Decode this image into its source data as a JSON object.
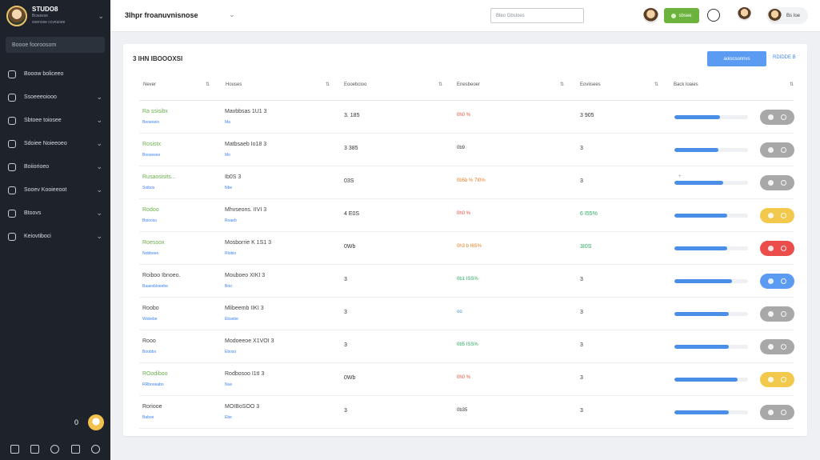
{
  "sidebar": {
    "brand": {
      "title": "STUDO8",
      "subtitle1": "Bcwsese",
      "subtitle2": "soenose ccvnsoee"
    },
    "search_placeholder": "Boooe fooroosom",
    "items": [
      {
        "label": "Booow boliceeo",
        "icon": "grid-icon",
        "has_chevron": false
      },
      {
        "label": "Ssoeeeoiooo",
        "icon": "layers-icon",
        "has_chevron": true
      },
      {
        "label": "Sbtoee toiosee",
        "icon": "folder-icon",
        "has_chevron": true
      },
      {
        "label": "Sdoiee Noieeoeo",
        "icon": "users-icon",
        "has_chevron": true
      },
      {
        "label": "Boiiorioeo",
        "icon": "document-icon",
        "has_chevron": true
      },
      {
        "label": "Sooev Kooieeoot",
        "icon": "chart-icon",
        "has_chevron": true
      },
      {
        "label": "Btoovs",
        "icon": "settings-icon",
        "has_chevron": true
      },
      {
        "label": "Keiovtiboci",
        "icon": "globe-icon",
        "has_chevron": true
      }
    ],
    "footer_count": "0"
  },
  "topbar": {
    "title": "3Ihpr froanuvnisnose",
    "search_placeholder": "Bleo Gbsloes",
    "status_label": "sbsee",
    "user_name": "Bs Ioe"
  },
  "card": {
    "title": "3 IHN IBOOOXSI",
    "primary_button": "aoiscsonnvs",
    "link_button": "RDIDDE B",
    "columns": [
      "Never",
      "Houses",
      "Eooebcioo",
      "Enesbeoer",
      "Eoviisees",
      "Back loaies"
    ],
    "rows": [
      {
        "name": "Ra ssisibx",
        "name_sub": "Beoeeeio",
        "name_color": "#6ab04c",
        "type": "Mavbbsas 1U1 3",
        "type_sub": "Ma",
        "v1": "3. 185",
        "change": "0h0 %",
        "change_color": "#e74c3c",
        "v3": "3 905",
        "v3_color": "#333333",
        "progress": 0.62,
        "toggle_color": "#a8a8a8"
      },
      {
        "name": "Rosistx",
        "name_sub": "Boosesee",
        "name_color": "#6ab04c",
        "type": "Matbsaeb Io18 3",
        "type_sub": "Mo",
        "v1": "3   385",
        "change": "0b9",
        "change_color": "#333333",
        "v3": "3",
        "v3_color": "#333333",
        "progress": 0.6,
        "toggle_color": "#a8a8a8"
      },
      {
        "name": "Rusaosisits...",
        "name_sub": "Soibos",
        "name_color": "#6ab04c",
        "type": "Ib0S 3",
        "type_sub": "Nbe",
        "v1": "03S",
        "change": "0b5b % 7I0%",
        "change_color": "#e67e22",
        "v3": "3",
        "v3_color": "#333333",
        "progress": 0.66,
        "toggle_color": "#a8a8a8"
      },
      {
        "name": "Rodoo",
        "name_sub": "Boiooso",
        "name_color": "#6ab04c",
        "type": "Mhvseons. IIVI 3",
        "type_sub": "Roaeb",
        "v1": "4   E0S",
        "change": "0h0 %",
        "change_color": "#e74c3c",
        "v3": "6   I55%",
        "v3_color": "#27ae60",
        "progress": 0.72,
        "toggle_color": "#f2c94c"
      },
      {
        "name": "Roesoox",
        "name_sub": "Nobbeeo",
        "name_color": "#6ab04c",
        "type": "Mosborrie K 1S1 3",
        "type_sub": "Rlobio",
        "v1": "0Wb",
        "change": "0h3 b  I6S%",
        "change_color": "#e67e22",
        "v3": "3I0S",
        "v3_color": "#27ae60",
        "progress": 0.72,
        "toggle_color": "#eb4d4b"
      },
      {
        "name": "Roiboo Ibnoeo.",
        "name_sub": "Baaesbioeebe",
        "name_color": "#444444",
        "type": "Mouboeo XIKI 3",
        "type_sub": "Boo",
        "v1": "3",
        "change": "0b1 ISS%",
        "change_color": "#27ae60",
        "v3": "3",
        "v3_color": "#333333",
        "progress": 0.78,
        "toggle_color": "#5b9cf2"
      },
      {
        "name": "Roobo",
        "name_sub": "Wobebe",
        "name_color": "#444444",
        "type": "Mlibeemb IIKI 3",
        "type_sub": "Ebsebe",
        "v1": "3",
        "change": "oo",
        "change_color": "#3498db",
        "v3": "3",
        "v3_color": "#333333",
        "progress": 0.74,
        "toggle_color": "#a8a8a8"
      },
      {
        "name": "Rooo",
        "name_sub": "Boobbo",
        "name_color": "#444444",
        "type": "Modoeeoe X1VOI 3",
        "type_sub": "Eboso",
        "v1": "3",
        "change": "0b5  ISS%",
        "change_color": "#27ae60",
        "v3": "3",
        "v3_color": "#333333",
        "progress": 0.74,
        "toggle_color": "#a8a8a8"
      },
      {
        "name": "ROodiboo",
        "name_sub": "RRbooeabo",
        "name_color": "#6ab04c",
        "type": "Rodbosoo I1tI 3",
        "type_sub": "Nue",
        "v1": "0Wb",
        "change": "0h0 %",
        "change_color": "#e74c3c",
        "v3": "3",
        "v3_color": "#333333",
        "progress": 0.86,
        "toggle_color": "#f2c94c"
      },
      {
        "name": "Roriooe",
        "name_sub": "Baboe",
        "name_color": "#444444",
        "type": "MOIBoSOO 3",
        "type_sub": "Ebe",
        "v1": "3",
        "change": "0b35",
        "change_color": "#333333",
        "v3": "3",
        "v3_color": "#333333",
        "progress": 0.74,
        "toggle_color": "#a8a8a8"
      }
    ]
  }
}
